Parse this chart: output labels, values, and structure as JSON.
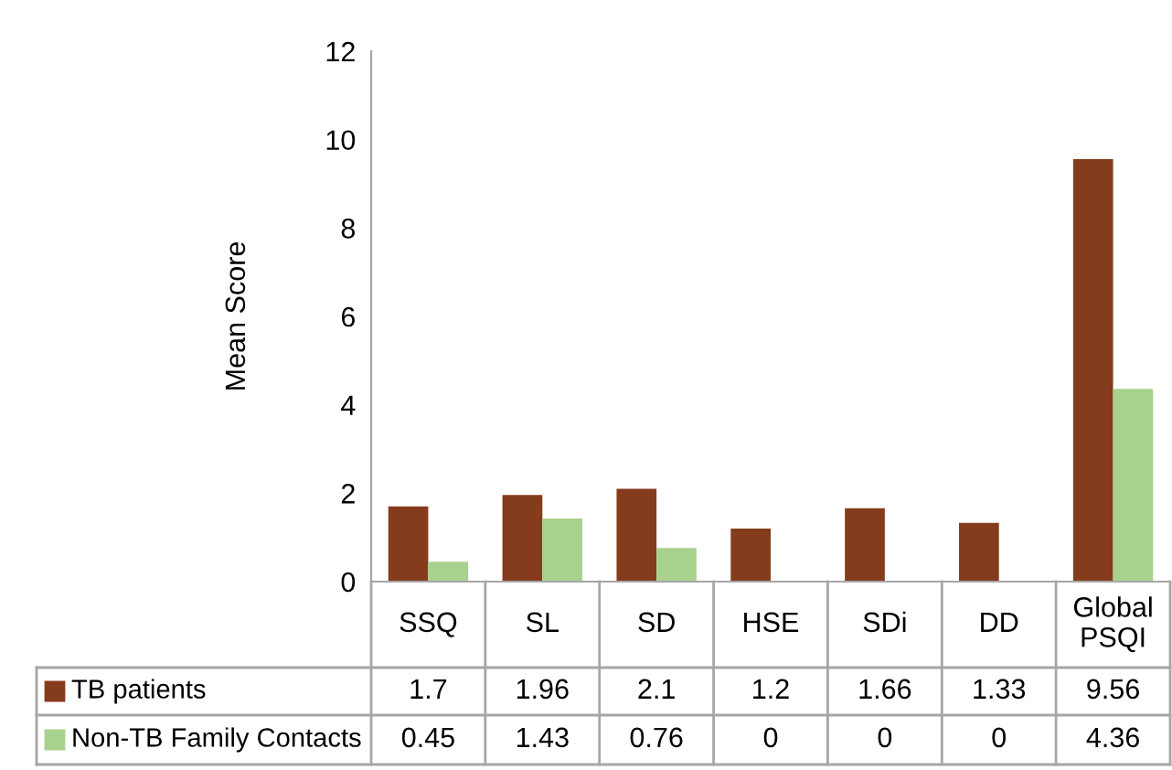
{
  "chart_data": {
    "type": "bar",
    "ylabel": "Mean Score",
    "categories": [
      "SSQ",
      "SL",
      "SD",
      "HSE",
      "SDi",
      "DD",
      "Global PSQI"
    ],
    "series": [
      {
        "name": "TB patients",
        "color": "#843c1c",
        "values": [
          1.7,
          1.96,
          2.1,
          1.2,
          1.66,
          1.33,
          9.56
        ]
      },
      {
        "name": "Non-TB Family Contacts",
        "color": "#a9d18e",
        "values": [
          0.45,
          1.43,
          0.76,
          0,
          0,
          0,
          4.36
        ]
      }
    ],
    "ylim": [
      0,
      12
    ],
    "yticks": [
      0,
      2,
      4,
      6,
      8,
      10,
      12
    ],
    "grid": false,
    "legend": "bottom",
    "data_labels": true
  }
}
